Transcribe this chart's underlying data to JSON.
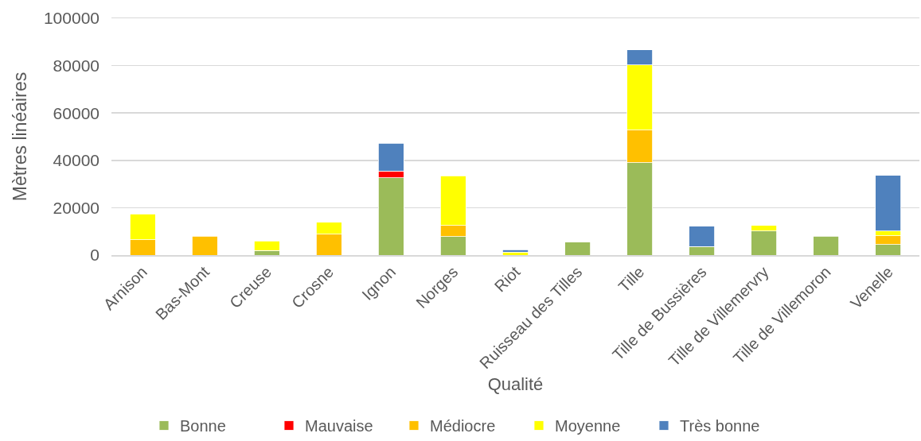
{
  "chart_data": {
    "type": "bar",
    "stacked": true,
    "xlabel": "Qualité",
    "ylabel": "Mètres linéaires",
    "categories": [
      "Arnison",
      "Bas-Mont",
      "Creuse",
      "Crosne",
      "Ignon",
      "Norges",
      "Riot",
      "Ruisseau des Tilles",
      "Tille",
      "Tille de Bussières",
      "Tille de Villemervry",
      "Tille de Villemoron",
      "Venelle"
    ],
    "series": [
      {
        "name": "Bonne",
        "color": "#9bbb59",
        "values": [
          null,
          null,
          1900,
          null,
          32700,
          7800,
          null,
          5400,
          39000,
          3600,
          10200,
          7900,
          4500
        ]
      },
      {
        "name": "Mauvaise",
        "color": "#ff0000",
        "values": [
          null,
          null,
          null,
          null,
          2800,
          null,
          null,
          null,
          null,
          null,
          null,
          null,
          null
        ]
      },
      {
        "name": "Médiocre",
        "color": "#ffc000",
        "values": [
          6500,
          8000,
          null,
          8800,
          null,
          4700,
          null,
          null,
          13700,
          null,
          null,
          null,
          3700
        ]
      },
      {
        "name": "Moyenne",
        "color": "#ffff00",
        "values": [
          10800,
          null,
          4100,
          5000,
          null,
          20900,
          1200,
          null,
          27600,
          null,
          2300,
          null,
          2000
        ]
      },
      {
        "name": "Très bonne",
        "color": "#4f81bd",
        "values": [
          null,
          null,
          null,
          null,
          11800,
          null,
          1100,
          null,
          6300,
          8500,
          null,
          null,
          23500
        ]
      }
    ],
    "ylim": [
      0,
      100000
    ],
    "yticks": [
      0,
      20000,
      40000,
      60000,
      80000,
      100000
    ],
    "grid": "y",
    "legend": "bottom"
  }
}
